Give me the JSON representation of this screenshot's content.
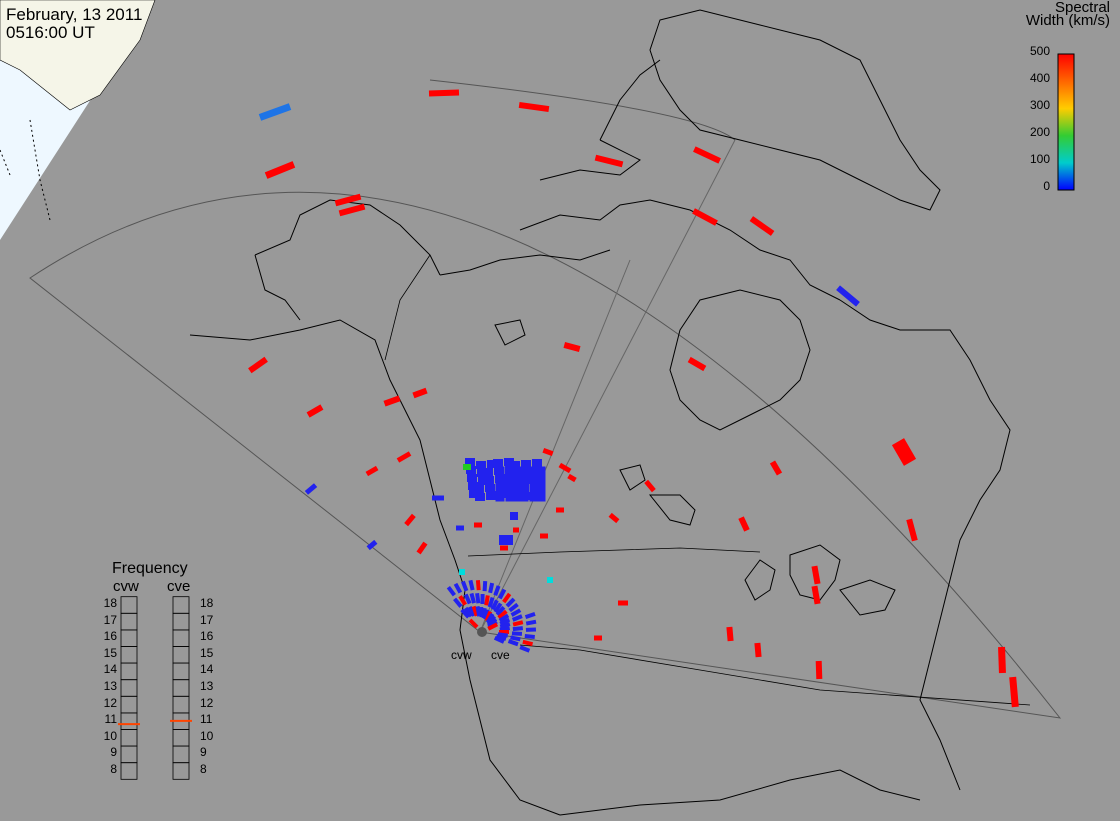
{
  "header": {
    "date": "February, 13 2011",
    "time": "0516:00 UT"
  },
  "colorbar": {
    "title_line1": "Spectral",
    "title_line2": "Width (km/s)",
    "ticks": [
      "500",
      "400",
      "300",
      "200",
      "100",
      "0"
    ],
    "min": 0,
    "max": 500,
    "colors": [
      "#ff0000",
      "#ff6600",
      "#ffcc00",
      "#33cc33",
      "#00cccc",
      "#0000ff"
    ]
  },
  "radars": [
    {
      "name": "cvw",
      "freq_mhz": 10.7
    },
    {
      "name": "cve",
      "freq_mhz": 10.9
    }
  ],
  "frequency_panel": {
    "title": "Frequency",
    "ticks": [
      "18",
      "17",
      "16",
      "15",
      "14",
      "13",
      "12",
      "11",
      "10",
      "9",
      "8"
    ],
    "min": 8,
    "max": 18,
    "marker_color": "#ff4400"
  },
  "colors": {
    "background": "#999999",
    "land_outline": "#000000",
    "night_shade": "#eef8ff",
    "fov_outline": "#555555"
  }
}
